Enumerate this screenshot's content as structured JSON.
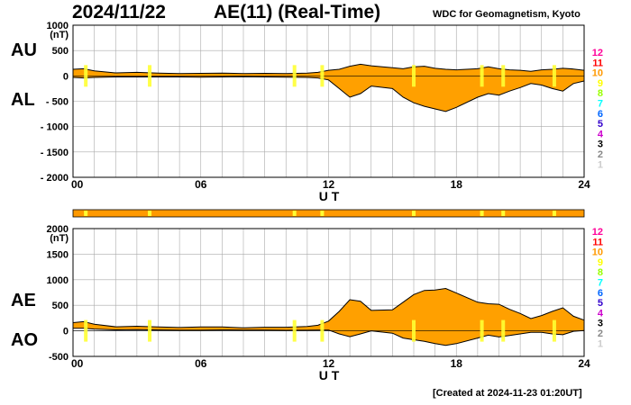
{
  "header": {
    "date": "2024/11/22",
    "title": "AE(11) (Real-Time)",
    "source": "WDC for Geomagnetism, Kyoto"
  },
  "footer": {
    "created": "[Created at 2024-11-23 01:20UT]"
  },
  "colors": {
    "fill": "#ffa000",
    "band": "#ff9900",
    "highlight": "#ffff33",
    "grid": "#aaaaaa",
    "station_colors": [
      "#ff0099",
      "#ff0000",
      "#ff9900",
      "#ffff00",
      "#99ff00",
      "#00ffff",
      "#0066ff",
      "#3300cc",
      "#cc00cc",
      "#000000",
      "#888888",
      "#cccccc"
    ]
  },
  "station_numbers": [
    "12",
    "11",
    "10",
    "9",
    "8",
    "7",
    "6",
    "5",
    "4",
    "3",
    "2",
    "1"
  ],
  "chart_data": [
    {
      "type": "area",
      "panel": "AU/AL",
      "labels": {
        "upper": "AU",
        "lower": "AL"
      },
      "xlabel": "U T",
      "ylabel": "(nT)",
      "x_range_hours": [
        0,
        24
      ],
      "x_ticks": [
        "00",
        "06",
        "12",
        "18",
        "24"
      ],
      "y_range": [
        -2000,
        1000
      ],
      "y_ticks": [
        "1000",
        "500",
        "0",
        "- 500",
        "- 1000",
        "- 1500",
        "- 2000"
      ],
      "y_tick_values": [
        1000,
        500,
        0,
        -500,
        -1000,
        -1500,
        -2000
      ],
      "series": [
        {
          "name": "AU",
          "hours": [
            0,
            0.5,
            1,
            2,
            3,
            4,
            5,
            6,
            7,
            8,
            9,
            10,
            11,
            11.5,
            12,
            12.5,
            13,
            13.5,
            14,
            15,
            15.5,
            16,
            16.5,
            17,
            17.5,
            18,
            19,
            19.5,
            20,
            20.5,
            21,
            21.5,
            22,
            22.5,
            23,
            23.5,
            24
          ],
          "values": [
            130,
            140,
            100,
            60,
            70,
            55,
            45,
            50,
            55,
            45,
            50,
            45,
            55,
            70,
            110,
            130,
            190,
            230,
            200,
            160,
            140,
            180,
            190,
            150,
            130,
            120,
            140,
            180,
            140,
            120,
            110,
            90,
            120,
            130,
            150,
            135,
            110
          ]
        },
        {
          "name": "AL",
          "hours": [
            0,
            0.5,
            1,
            2,
            3,
            4,
            5,
            6,
            7,
            8,
            9,
            10,
            11,
            11.5,
            12,
            12.5,
            13,
            13.5,
            14,
            15,
            15.5,
            16,
            16.5,
            17,
            17.5,
            18,
            19,
            19.5,
            20,
            20.5,
            21,
            21.5,
            22,
            22.5,
            23,
            23.5,
            24
          ],
          "values": [
            -30,
            -40,
            -30,
            -20,
            -20,
            -20,
            -20,
            -25,
            -20,
            -15,
            -20,
            -25,
            -30,
            -40,
            -80,
            -250,
            -420,
            -350,
            -200,
            -250,
            -420,
            -530,
            -600,
            -650,
            -700,
            -620,
            -420,
            -350,
            -380,
            -300,
            -230,
            -150,
            -180,
            -250,
            -300,
            -150,
            -100
          ]
        }
      ]
    },
    {
      "type": "area",
      "panel": "AE/AO",
      "labels": {
        "upper": "AE",
        "lower": "AO"
      },
      "xlabel": "U T",
      "ylabel": "(nT)",
      "x_range_hours": [
        0,
        24
      ],
      "x_ticks": [
        "00",
        "06",
        "12",
        "18",
        "24"
      ],
      "y_range": [
        -500,
        2000
      ],
      "y_ticks": [
        "2000",
        "1500",
        "1000",
        "500",
        "0",
        "-500"
      ],
      "y_tick_values": [
        2000,
        1500,
        1000,
        500,
        0,
        -500
      ],
      "series": [
        {
          "name": "AE",
          "hours": [
            0,
            0.5,
            1,
            2,
            3,
            4,
            5,
            6,
            7,
            8,
            9,
            10,
            11,
            11.5,
            12,
            12.5,
            13,
            13.5,
            14,
            15,
            15.5,
            16,
            16.5,
            17,
            17.5,
            18,
            19,
            19.5,
            20,
            20.5,
            21,
            21.5,
            22,
            22.5,
            23,
            23.5,
            24
          ],
          "values": [
            160,
            180,
            130,
            80,
            90,
            75,
            65,
            75,
            75,
            60,
            70,
            70,
            85,
            110,
            190,
            380,
            610,
            580,
            400,
            410,
            560,
            710,
            790,
            800,
            830,
            740,
            560,
            530,
            520,
            420,
            340,
            240,
            300,
            380,
            450,
            285,
            210
          ]
        },
        {
          "name": "AO",
          "hours": [
            0,
            0.5,
            1,
            2,
            3,
            4,
            5,
            6,
            7,
            8,
            9,
            10,
            11,
            11.5,
            12,
            12.5,
            13,
            13.5,
            14,
            15,
            15.5,
            16,
            16.5,
            17,
            17.5,
            18,
            19,
            19.5,
            20,
            20.5,
            21,
            21.5,
            22,
            22.5,
            23,
            23.5,
            24
          ],
          "values": [
            50,
            50,
            35,
            20,
            25,
            18,
            13,
            13,
            18,
            15,
            15,
            10,
            13,
            15,
            15,
            -60,
            -115,
            -60,
            0,
            -45,
            -140,
            -175,
            -205,
            -250,
            -285,
            -250,
            -140,
            -85,
            -120,
            -90,
            -60,
            -30,
            -30,
            -60,
            -75,
            -8,
            5
          ]
        }
      ]
    }
  ],
  "missing_station_marks_hours": [
    0.6,
    3.6,
    10.4,
    11.7,
    16.0,
    19.2,
    20.2,
    22.6
  ]
}
